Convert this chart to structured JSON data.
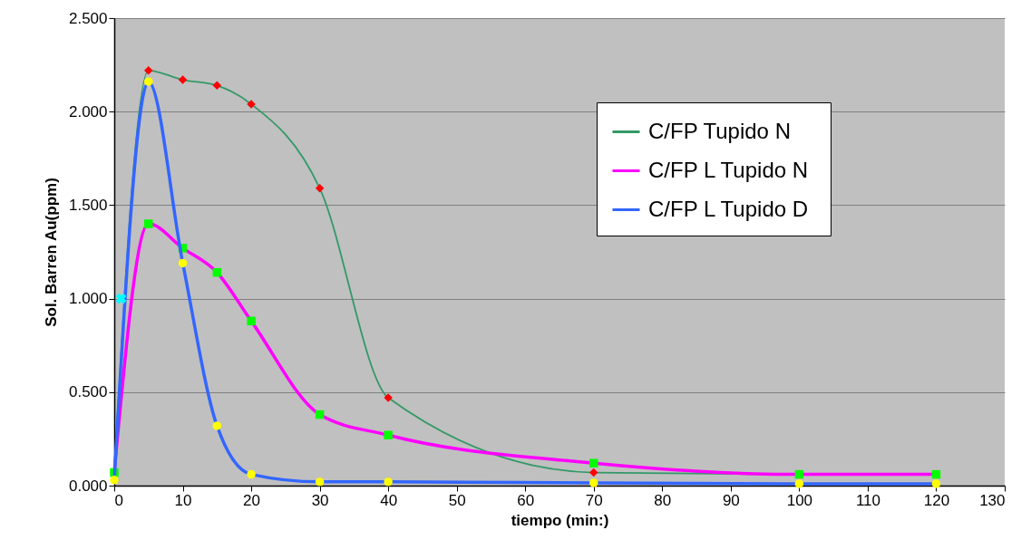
{
  "chart_data": {
    "type": "line",
    "xlabel": "tiempo (min:)",
    "ylabel": "Sol. Barren Au(ppm)",
    "xlim": [
      0,
      130
    ],
    "xticks": [
      0,
      10,
      20,
      30,
      40,
      50,
      60,
      70,
      80,
      90,
      100,
      110,
      120,
      130
    ],
    "ylim": [
      0,
      2.5
    ],
    "yticks": [
      {
        "value": 0,
        "label": "0.000"
      },
      {
        "value": 0.5,
        "label": "0.500"
      },
      {
        "value": 1,
        "label": "1.000"
      },
      {
        "value": 1.5,
        "label": "1.500"
      },
      {
        "value": 2,
        "label": "2.000"
      },
      {
        "value": 2.5,
        "label": "2.500"
      }
    ],
    "grid": "y",
    "legend": "top right",
    "line_style": "solid",
    "series": [
      {
        "name": "C/FP Tupido N",
        "color": "#339966",
        "marker": "diamond",
        "colors": [
          "#ff0000",
          "#ff0000",
          "#ff0000",
          "#ff0000",
          "#ff0000",
          "#ff0000",
          "#ff0000",
          "#ff0000",
          "#ff0000",
          "#ff0000"
        ],
        "x": [
          0,
          5,
          10,
          15,
          20,
          30,
          40,
          70,
          100,
          120
        ],
        "values": [
          0.07,
          2.22,
          2.17,
          2.14,
          2.04,
          1.59,
          0.47,
          0.07,
          0.06,
          0.06
        ]
      },
      {
        "name": "C/FP  L Tupido N",
        "color": "#ff00ff",
        "marker": "square",
        "colors": [
          "#00ff00",
          "#00ff00",
          "#00ff00",
          "#00ff00",
          "#00ff00",
          "#00ff00",
          "#00ff00",
          "#00ff00",
          "#00ff00",
          "#00ff00"
        ],
        "x": [
          0,
          5,
          10,
          15,
          20,
          30,
          40,
          70,
          100,
          120
        ],
        "values": [
          0.07,
          1.4,
          1.27,
          1.14,
          0.88,
          0.38,
          0.27,
          0.12,
          0.06,
          0.06
        ]
      },
      {
        "name": "C/FP L Tupido D",
        "color": "#3366ff",
        "marker": "circle",
        "colors": [
          "#ffff00",
          "#ffff00",
          "#ffff00",
          "#ffff00",
          "#ffff00",
          "#ffff00",
          "#ffff00",
          "#ffff00",
          "#ffff00",
          "#ffff00"
        ],
        "x": [
          0,
          5,
          10,
          15,
          20,
          30,
          40,
          70,
          100,
          120
        ],
        "values": [
          0.03,
          2.16,
          1.19,
          0.32,
          0.06,
          0.02,
          0.02,
          0.015,
          0.01,
          0.01
        ]
      },
      {
        "type": "scatter",
        "color": "#00ffff",
        "marker": "cross",
        "x": [
          1
        ],
        "values": [
          1.0
        ]
      }
    ]
  }
}
